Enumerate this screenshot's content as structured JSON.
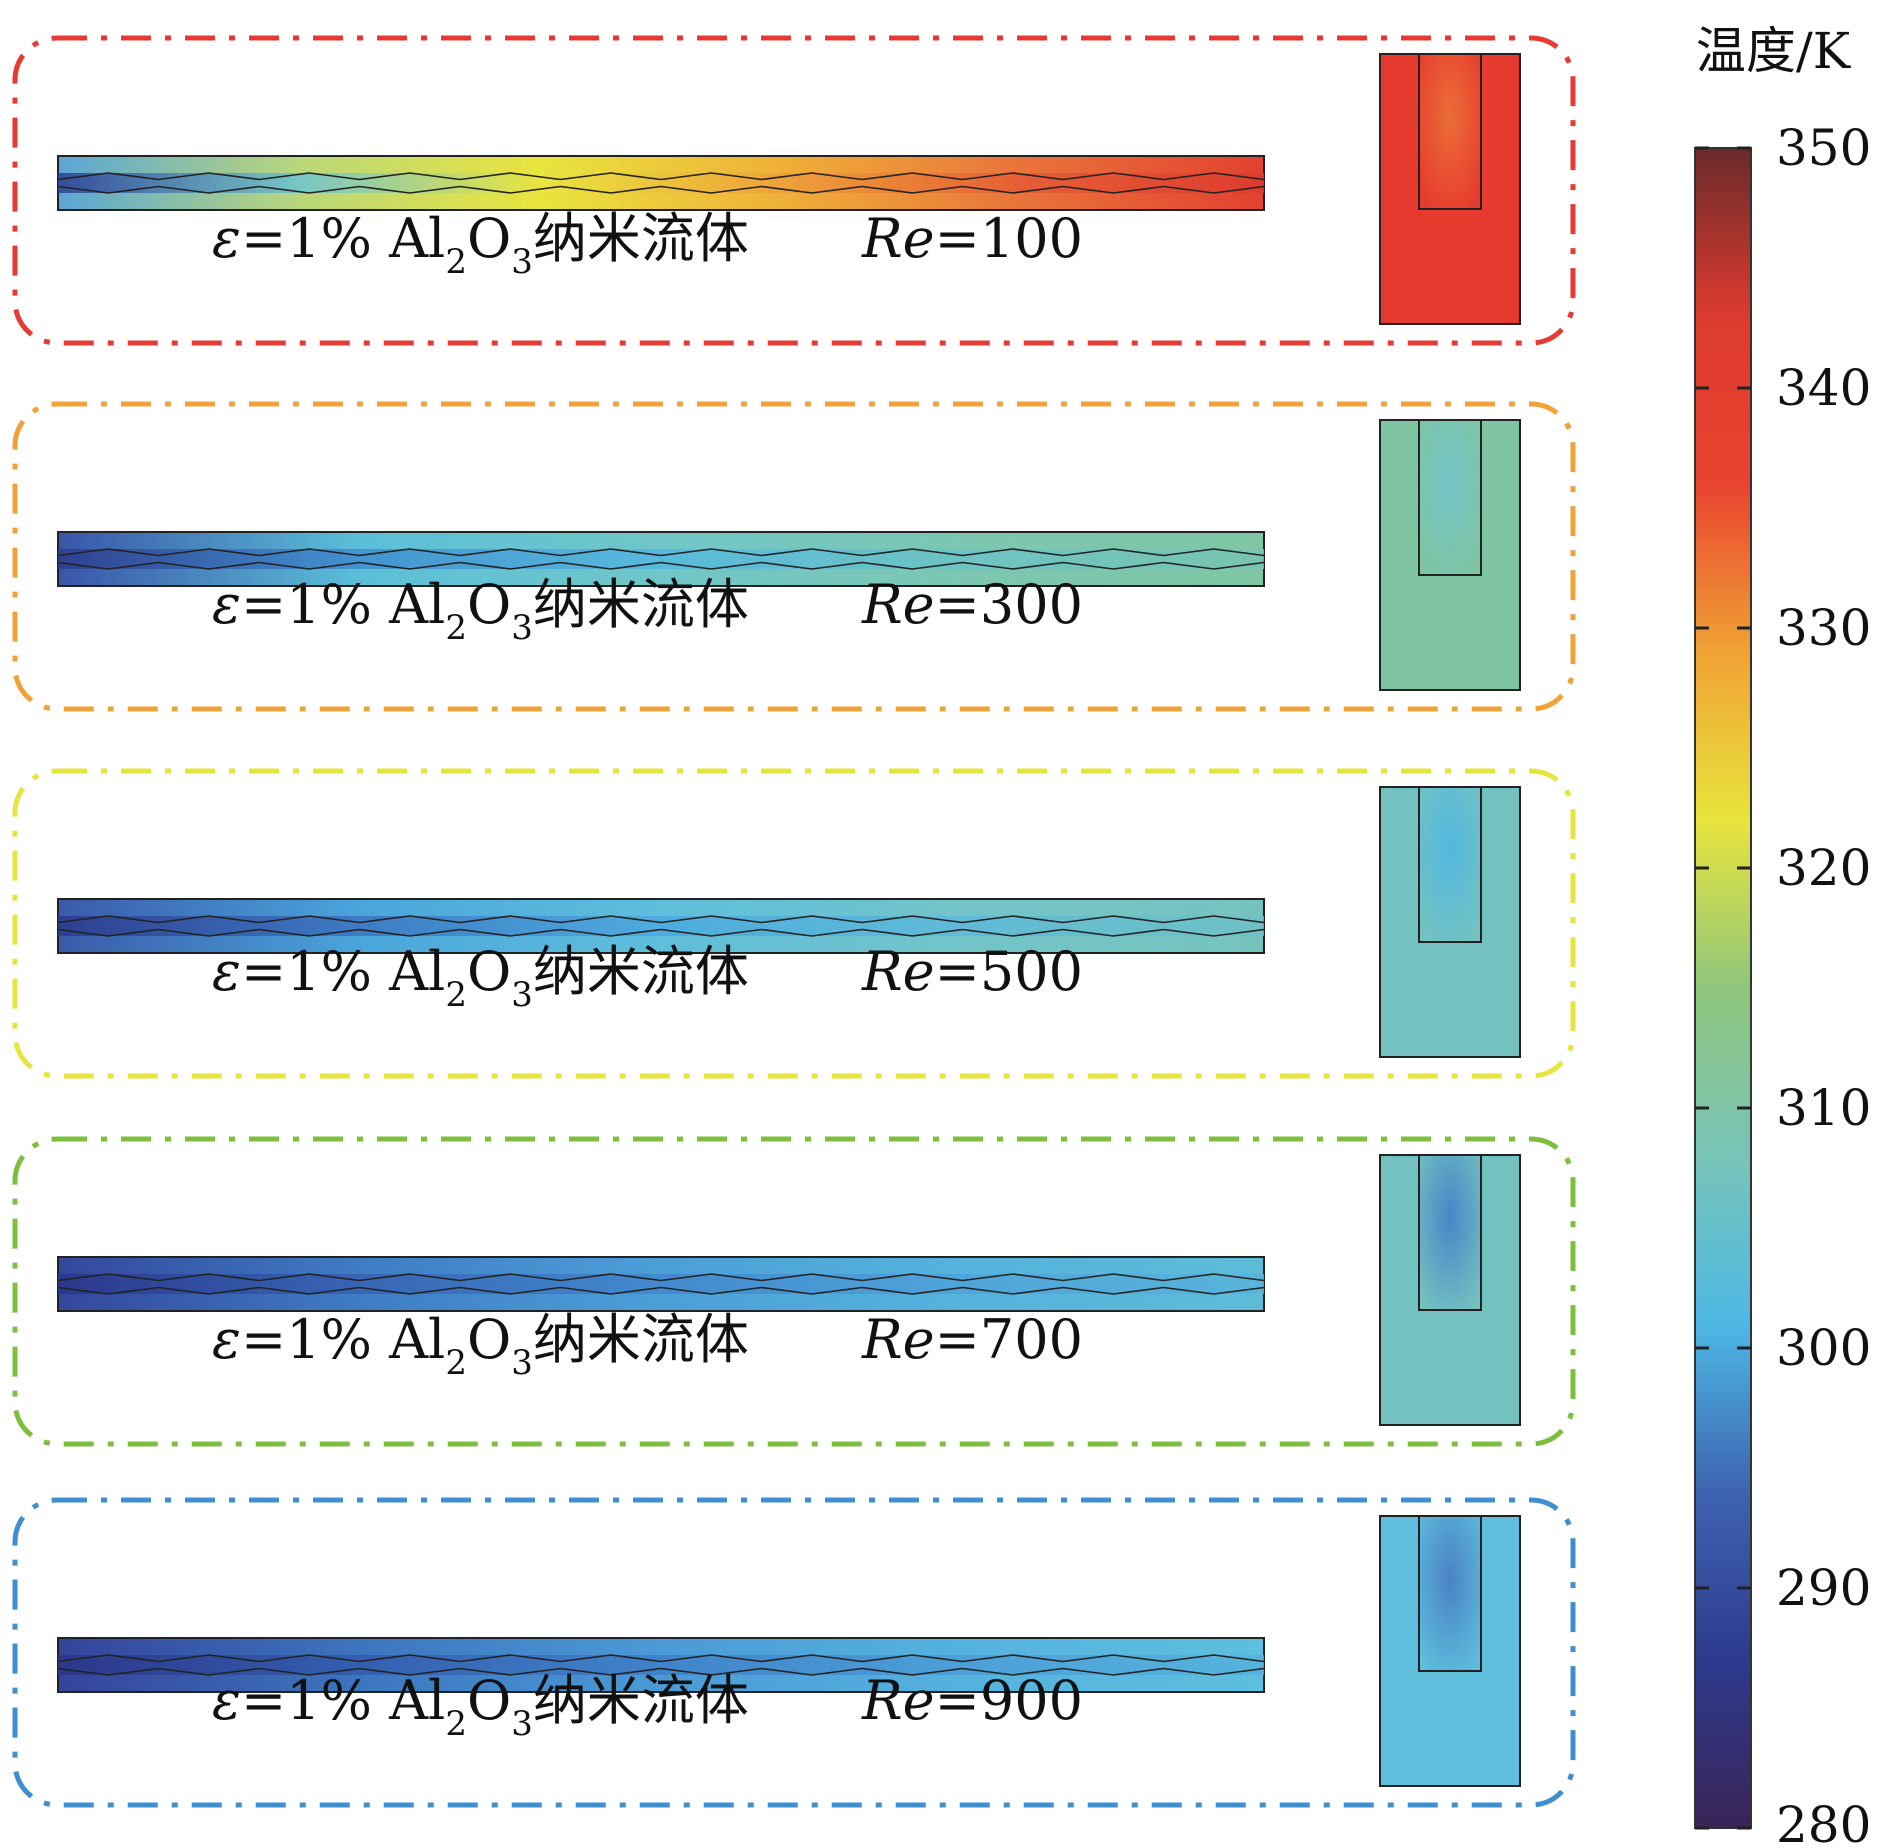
{
  "colorbar": {
    "title": "温度/K",
    "tick_labels": [
      "350",
      "340",
      "330",
      "320",
      "310",
      "300",
      "290",
      "280"
    ],
    "min": 280,
    "max": 350
  },
  "panels": [
    {
      "id": "re100",
      "frame_color": "#e63a32",
      "label_prefix": "ε=1% Al",
      "sub1": "2",
      "label_mid": "O",
      "sub2": "3",
      "label_suffix": "纳米流体",
      "re_symbol": "Re",
      "re_value": "=100",
      "channel_colors": [
        "#5aa6d6",
        "#b9d77a",
        "#e9e43e",
        "#efb038",
        "#e9733a",
        "#e2412f"
      ],
      "core_colors": [
        "#2e3f92",
        "#6cc3d3",
        "#e9e43e",
        "#ee9e3a",
        "#e55a34",
        "#dd3a2f"
      ],
      "heatsink_color": "#e63a2e",
      "heatsink_core_color": "#eb6d37"
    },
    {
      "id": "re300",
      "frame_color": "#f0a238",
      "label_prefix": "ε=1% Al",
      "sub1": "2",
      "label_mid": "O",
      "sub2": "3",
      "label_suffix": "纳米流体",
      "re_symbol": "Re",
      "re_value": "=300",
      "channel_colors": [
        "#3a55a8",
        "#5bbfd8",
        "#70c6c8",
        "#7dc7b2",
        "#7fc6a3"
      ],
      "core_colors": [
        "#2d3c8e",
        "#3f8ccf",
        "#53b8e0",
        "#6bc3c6",
        "#77c4b2"
      ],
      "heatsink_color": "#7ec4a0",
      "heatsink_core_color": "#74c4c8"
    },
    {
      "id": "re500",
      "frame_color": "#e6e43e",
      "label_prefix": "ε=1% Al",
      "sub1": "2",
      "label_mid": "O",
      "sub2": "3",
      "label_suffix": "纳米流体",
      "re_symbol": "Re",
      "re_value": "=500",
      "channel_colors": [
        "#3a5aaa",
        "#4aa5db",
        "#5fbedb",
        "#72c4c8",
        "#76c3be"
      ],
      "core_colors": [
        "#2b3a8c",
        "#3c74c1",
        "#4aa9df",
        "#5db9d9",
        "#6ec1c6"
      ],
      "heatsink_color": "#74c2c0",
      "heatsink_core_color": "#52b8e0"
    },
    {
      "id": "re700",
      "frame_color": "#7cbf3c",
      "label_prefix": "ε=1% Al",
      "sub1": "2",
      "label_mid": "O",
      "sub2": "3",
      "label_suffix": "纳米流体",
      "re_symbol": "Re",
      "re_value": "=700",
      "channel_colors": [
        "#34479c",
        "#3f7cc4",
        "#4c9fd8",
        "#55b3dc",
        "#5cbcd8"
      ],
      "core_colors": [
        "#2a358a",
        "#3562b2",
        "#4186cc",
        "#4ea2d8",
        "#58b3da"
      ],
      "heatsink_color": "#74c2c0",
      "heatsink_core_color": "#4885c8"
    },
    {
      "id": "re900",
      "frame_color": "#3f8fd0",
      "label_prefix": "ε=1% Al",
      "sub1": "2",
      "label_mid": "O",
      "sub2": "3",
      "label_suffix": "纳米流体",
      "re_symbol": "Re",
      "re_value": "=900",
      "channel_colors": [
        "#34449a",
        "#3d75bf",
        "#4b9ad6",
        "#55b2df",
        "#5dbfde"
      ],
      "core_colors": [
        "#2a3589",
        "#335bad",
        "#3f7fc8",
        "#4a9cd6",
        "#55b2dc"
      ],
      "heatsink_color": "#5ebedb",
      "heatsink_core_color": "#4a82c6"
    }
  ],
  "colormap": [
    "#3a2457",
    "#2d3a8e",
    "#3e63b0",
    "#4db8e4",
    "#78c4b8",
    "#8fc67c",
    "#e8e43c",
    "#f0a235",
    "#e8432f",
    "#dc3b2f",
    "#6a2a2a"
  ]
}
